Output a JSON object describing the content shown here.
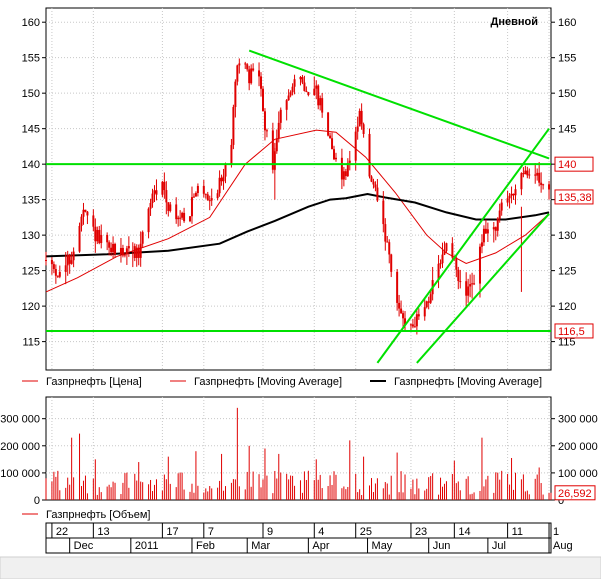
{
  "chart_data": [
    {
      "type": "line",
      "title": "Дневной",
      "ylim": [
        111,
        162
      ],
      "yticks": [
        115,
        120,
        125,
        130,
        135,
        140,
        145,
        150,
        155,
        160
      ],
      "x_range": [
        "2010-11-19",
        "2011-08-02"
      ],
      "price_series": {
        "name": "Газпрнефть [Цена]",
        "color": "#e00000",
        "anchors": [
          [
            "2010-11-19",
            126.5
          ],
          [
            "2010-11-26",
            124.5
          ],
          [
            "2010-12-02",
            127.0
          ],
          [
            "2010-12-08",
            133.0
          ],
          [
            "2010-12-14",
            130.0
          ],
          [
            "2010-12-20",
            128.0
          ],
          [
            "2011-01-05",
            127.5
          ],
          [
            "2011-01-11",
            135.0
          ],
          [
            "2011-01-17",
            137.0
          ],
          [
            "2011-01-23",
            132.0
          ],
          [
            "2011-01-30",
            133.0
          ],
          [
            "2011-02-05",
            137.0
          ],
          [
            "2011-02-11",
            135.0
          ],
          [
            "2011-02-16",
            138.0
          ],
          [
            "2011-02-21",
            143.0
          ],
          [
            "2011-02-24",
            155.0
          ],
          [
            "2011-03-02",
            152.0
          ],
          [
            "2011-03-06",
            155.0
          ],
          [
            "2011-03-10",
            145.0
          ],
          [
            "2011-03-14",
            140.0
          ],
          [
            "2011-03-18",
            147.0
          ],
          [
            "2011-03-24",
            152.0
          ],
          [
            "2011-03-30",
            151.0
          ],
          [
            "2011-04-05",
            150.0
          ],
          [
            "2011-04-11",
            145.0
          ],
          [
            "2011-04-17",
            138.0
          ],
          [
            "2011-04-22",
            140.0
          ],
          [
            "2011-04-27",
            148.0
          ],
          [
            "2011-05-01",
            139.0
          ],
          [
            "2011-05-06",
            135.0
          ],
          [
            "2011-05-11",
            128.0
          ],
          [
            "2011-05-16",
            120.0
          ],
          [
            "2011-05-20",
            118.0
          ],
          [
            "2011-05-25",
            117.5
          ],
          [
            "2011-05-30",
            120.0
          ],
          [
            "2011-06-05",
            124.0
          ],
          [
            "2011-06-10",
            129.0
          ],
          [
            "2011-06-14",
            126.0
          ],
          [
            "2011-06-19",
            121.0
          ],
          [
            "2011-06-24",
            124.0
          ],
          [
            "2011-06-29",
            130.0
          ],
          [
            "2011-07-04",
            131.0
          ],
          [
            "2011-07-10",
            135.0
          ],
          [
            "2011-07-16",
            137.0
          ],
          [
            "2011-07-22",
            139.0
          ],
          [
            "2011-07-28",
            138.0
          ],
          [
            "2011-08-01",
            135.4
          ]
        ]
      },
      "ma_short": {
        "name": "Газпрнефть [Moving Average]",
        "color": "#e00000",
        "points": [
          [
            "2010-11-19",
            122.0
          ],
          [
            "2010-12-05",
            124.0
          ],
          [
            "2010-12-25",
            127.0
          ],
          [
            "2011-01-20",
            129.5
          ],
          [
            "2011-02-10",
            132.5
          ],
          [
            "2011-02-28",
            140.0
          ],
          [
            "2011-03-15",
            143.5
          ],
          [
            "2011-04-05",
            144.8
          ],
          [
            "2011-04-15",
            144.5
          ],
          [
            "2011-04-30",
            141.0
          ],
          [
            "2011-05-15",
            136.0
          ],
          [
            "2011-05-31",
            130.0
          ],
          [
            "2011-06-10",
            127.5
          ],
          [
            "2011-06-20",
            126.0
          ],
          [
            "2011-07-05",
            127.5
          ],
          [
            "2011-07-20",
            130.0
          ],
          [
            "2011-08-01",
            133.0
          ]
        ]
      },
      "ma_long": {
        "name": "Газпрнефть [Moving Average]",
        "color": "#000000",
        "points": [
          [
            "2010-11-19",
            127.0
          ],
          [
            "2010-12-20",
            127.3
          ],
          [
            "2011-01-20",
            127.8
          ],
          [
            "2011-02-15",
            128.8
          ],
          [
            "2011-03-01",
            130.5
          ],
          [
            "2011-03-15",
            132.0
          ],
          [
            "2011-04-01",
            134.0
          ],
          [
            "2011-04-12",
            135.0
          ],
          [
            "2011-04-20",
            135.2
          ],
          [
            "2011-05-01",
            135.8
          ],
          [
            "2011-05-10",
            135.3
          ],
          [
            "2011-05-25",
            134.6
          ],
          [
            "2011-06-10",
            133.2
          ],
          [
            "2011-06-25",
            132.2
          ],
          [
            "2011-07-10",
            132.2
          ],
          [
            "2011-07-25",
            132.8
          ],
          [
            "2011-08-01",
            133.2
          ]
        ]
      },
      "trend_lines": [
        {
          "from": [
            "2011-03-02",
            156.0
          ],
          "to": [
            "2011-08-01",
            140.8
          ]
        },
        {
          "from": [
            "2010-11-19",
            140.0
          ],
          "to": [
            "2011-08-02",
            140.0
          ]
        },
        {
          "from": [
            "2010-11-19",
            116.5
          ],
          "to": [
            "2011-08-02",
            116.5
          ]
        },
        {
          "from": [
            "2011-05-06",
            112.0
          ],
          "to": [
            "2011-08-01",
            145.0
          ]
        },
        {
          "from": [
            "2011-05-26",
            112.0
          ],
          "to": [
            "2011-08-01",
            133.0
          ]
        }
      ],
      "trend_color": "#00e000",
      "price_labels": [
        {
          "value": 140,
          "text": "140"
        },
        {
          "value": 135.38,
          "text": "135,38"
        },
        {
          "value": 116.5,
          "text": "116,5"
        }
      ]
    },
    {
      "type": "bar",
      "series_name": "Газпрнефть [Объем]",
      "ylim": [
        0,
        380000
      ],
      "yticks": [
        0,
        100000,
        200000,
        300000
      ],
      "ytick_labels": [
        "0",
        "100 000",
        "200 000",
        "300 000"
      ],
      "base_level": 60000,
      "spikes": [
        [
          "2010-12-02",
          230000
        ],
        [
          "2010-12-06",
          245000
        ],
        [
          "2010-12-14",
          150000
        ],
        [
          "2011-01-05",
          140000
        ],
        [
          "2011-01-20",
          160000
        ],
        [
          "2011-02-03",
          180000
        ],
        [
          "2011-02-16",
          170000
        ],
        [
          "2011-02-24",
          340000
        ],
        [
          "2011-03-02",
          200000
        ],
        [
          "2011-03-10",
          190000
        ],
        [
          "2011-03-17",
          170000
        ],
        [
          "2011-04-05",
          150000
        ],
        [
          "2011-04-22",
          220000
        ],
        [
          "2011-04-29",
          160000
        ],
        [
          "2011-05-16",
          175000
        ],
        [
          "2011-06-14",
          145000
        ],
        [
          "2011-06-28",
          230000
        ],
        [
          "2011-07-13",
          155000
        ],
        [
          "2011-07-27",
          120000
        ]
      ],
      "last_value": 26592,
      "last_label": "26,592"
    }
  ],
  "legend_main": [
    {
      "label": "Газпрнефть [Цена]",
      "color": "#e00000",
      "thick": false
    },
    {
      "label": "Газпрнефть [Moving Average]",
      "color": "#e00000",
      "thick": false
    },
    {
      "label": "Газпрнефть [Moving Average]",
      "color": "#000000",
      "thick": true
    }
  ],
  "legend_volume": {
    "label": "Газпрнефть [Объем]",
    "color": "#e00000"
  },
  "timeline": {
    "day_ticks": [
      {
        "date": "2010-11-22",
        "label": "22"
      },
      {
        "date": "2010-12-13",
        "label": "13"
      },
      {
        "date": "2011-01-17",
        "label": "17"
      },
      {
        "date": "2011-02-07",
        "label": "7"
      },
      {
        "date": "2011-03-09",
        "label": "9"
      },
      {
        "date": "2011-04-04",
        "label": "4"
      },
      {
        "date": "2011-04-25",
        "label": "25"
      },
      {
        "date": "2011-05-23",
        "label": "23"
      },
      {
        "date": "2011-06-14",
        "label": "14"
      },
      {
        "date": "2011-07-11",
        "label": "11"
      },
      {
        "date": "2011-08-01",
        "label": "1"
      }
    ],
    "months": [
      {
        "date": "2010-12-01",
        "label": "Dec"
      },
      {
        "date": "2011-01-01",
        "label": "2011"
      },
      {
        "date": "2011-02-01",
        "label": "Feb"
      },
      {
        "date": "2011-03-01",
        "label": "Mar"
      },
      {
        "date": "2011-04-01",
        "label": "Apr"
      },
      {
        "date": "2011-05-01",
        "label": "May"
      },
      {
        "date": "2011-06-01",
        "label": "Jun"
      },
      {
        "date": "2011-07-01",
        "label": "Jul"
      },
      {
        "date": "2011-08-01",
        "label": "Aug"
      }
    ]
  }
}
